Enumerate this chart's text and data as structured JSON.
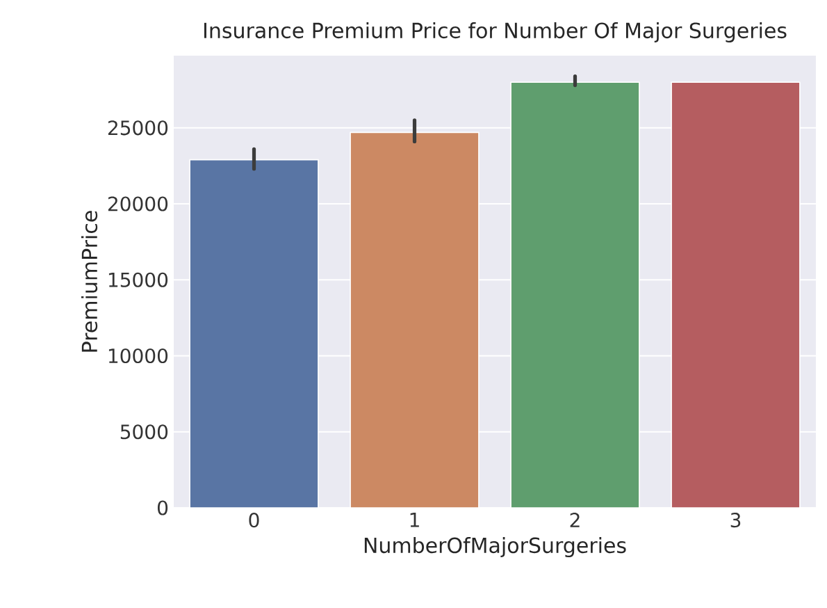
{
  "chart_data": {
    "type": "bar",
    "title": "Insurance Premium Price for Number Of Major Surgeries",
    "xlabel": "NumberOfMajorSurgeries",
    "ylabel": "PremiumPrice",
    "categories": [
      "0",
      "1",
      "2",
      "3"
    ],
    "values": [
      22900,
      24700,
      28000,
      28000
    ],
    "errors": [
      [
        22300,
        23600
      ],
      [
        24100,
        25500
      ],
      [
        27800,
        28400
      ],
      null
    ],
    "colors": [
      "#5975a4",
      "#cc8963",
      "#5f9e6e",
      "#b55d60"
    ],
    "ylim": [
      0,
      29750
    ],
    "yticks": [
      0,
      5000,
      10000,
      15000,
      20000,
      25000
    ],
    "grid": "y"
  }
}
